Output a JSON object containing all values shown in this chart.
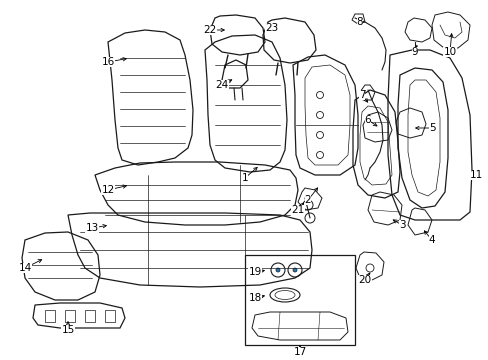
{
  "background_color": "#ffffff",
  "line_color": "#1a1a1a",
  "figsize": [
    4.89,
    3.6
  ],
  "dpi": 100,
  "xlim": [
    0,
    489
  ],
  "ylim": [
    0,
    360
  ],
  "label_fontsize": 7.5
}
